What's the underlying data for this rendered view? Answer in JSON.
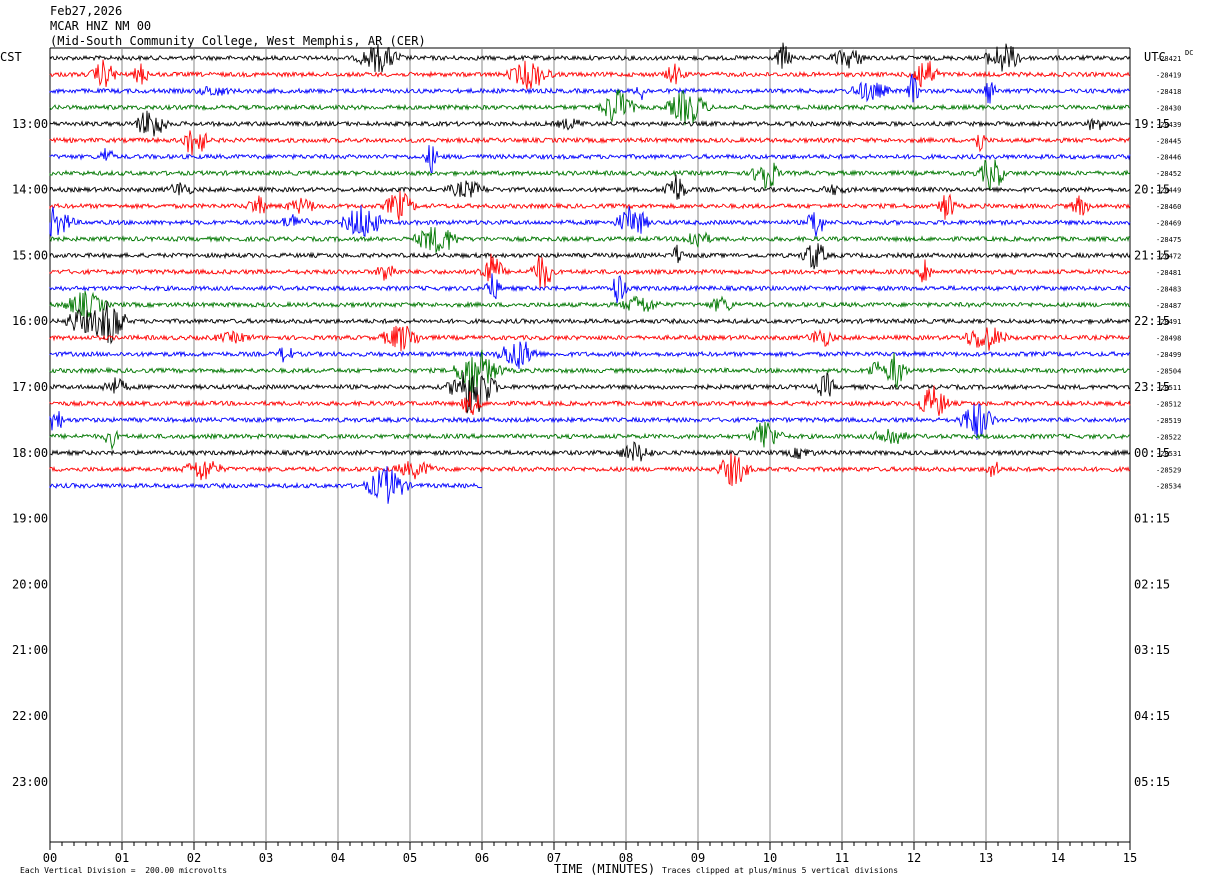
{
  "header": {
    "date": "Feb27,2026",
    "station": "MCAR HNZ NM 00",
    "location": "(Mid-South Community College, West Memphis, AR (CER)"
  },
  "tz_left": "CST",
  "tz_right": "UTC",
  "dc_label": "DC",
  "footer": {
    "scale": "Each Vertical Division =  200.00 microvolts",
    "clip": "Traces clipped at plus/minus 5 vertical divisions",
    "xlabel": "TIME (MINUTES)"
  },
  "colors": {
    "black": "#000000",
    "red": "#ff0000",
    "blue": "#0000ff",
    "green": "#007700",
    "grid": "#888888"
  },
  "chart_data": {
    "type": "line",
    "xlabel": "TIME (MINUTES)",
    "xlim": [
      0,
      15
    ],
    "x_ticks": [
      "00",
      "01",
      "02",
      "03",
      "04",
      "05",
      "06",
      "07",
      "08",
      "09",
      "10",
      "11",
      "12",
      "13",
      "14",
      "15"
    ],
    "left_hour_labels": [
      "13:00",
      "14:00",
      "15:00",
      "16:00",
      "17:00",
      "18:00",
      "19:00",
      "20:00",
      "21:00",
      "22:00",
      "23:00"
    ],
    "right_hour_labels": [
      "19:15",
      "20:15",
      "21:15",
      "22:15",
      "23:15",
      "00:15",
      "01:15",
      "02:15",
      "03:15",
      "04:15",
      "05:15"
    ],
    "traces_per_hour": 4,
    "trace_color_cycle": [
      "black",
      "red",
      "blue",
      "green"
    ],
    "dc_offsets": [
      "-28421",
      "-28419",
      "-28418",
      "-28430",
      "-28439",
      "-28445",
      "-28446",
      "-28452",
      "-28449",
      "-28460",
      "-28469",
      "-28475",
      "-28472",
      "-28481",
      "-28483",
      "-28487",
      "-28491",
      "-28498",
      "-28499",
      "-28504",
      "-28511",
      "-28512",
      "-28519",
      "-28522",
      "-28531",
      "-28529",
      "-28534"
    ],
    "last_trace_end_minute": 6.0,
    "vertical_division_microvolts": 200.0,
    "clip_divisions": 5
  }
}
